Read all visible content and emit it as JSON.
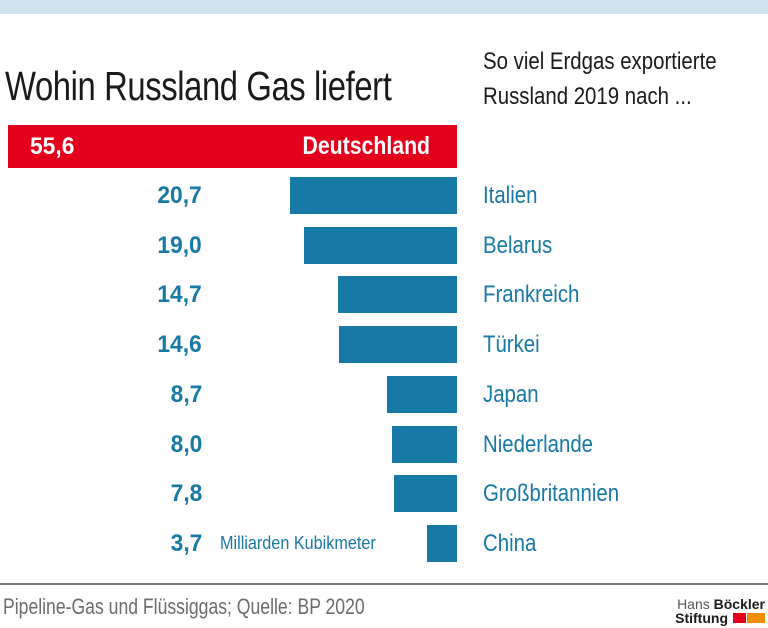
{
  "page": {
    "background": "#ffffff",
    "top_band_color": "#cde4ee"
  },
  "header": {
    "title": "Wohin Russland Gas liefert",
    "subtitle_line1": "So viel Erdgas exportierte",
    "subtitle_line2": "Russland 2019 nach ..."
  },
  "chart_data": {
    "type": "bar",
    "orientation": "horizontal",
    "title": "Wohin Russland Gas liefert",
    "subtitle": "So viel Erdgas exportierte Russland 2019 nach ...",
    "unit_label": "Milliarden Kubikmeter",
    "categories": [
      "Deutschland",
      "Italien",
      "Belarus",
      "Frankreich",
      "Türkei",
      "Japan",
      "Niederlande",
      "Großbritannien",
      "China"
    ],
    "values": [
      55.6,
      20.7,
      19.0,
      14.7,
      14.6,
      8.7,
      8.0,
      7.8,
      3.7
    ],
    "value_labels": [
      "55,6",
      "20,7",
      "19,0",
      "14,7",
      "14,6",
      "8,7",
      "8,0",
      "7,8",
      "3,7"
    ],
    "highlight_index": 0,
    "highlight_color": "#e2001a",
    "bar_color": "#1779a5",
    "xlim": [
      0,
      55.6
    ],
    "grid": false,
    "legend": false
  },
  "footer": {
    "source": "Pipeline-Gas und Flüssiggas; Quelle: BP 2020",
    "logo": {
      "name_regular": "Hans ",
      "name_bold": "Böckler",
      "line2_bold": "Stiftung",
      "mark_color_1": "#e2001a",
      "mark_color_2": "#f18f00"
    }
  }
}
